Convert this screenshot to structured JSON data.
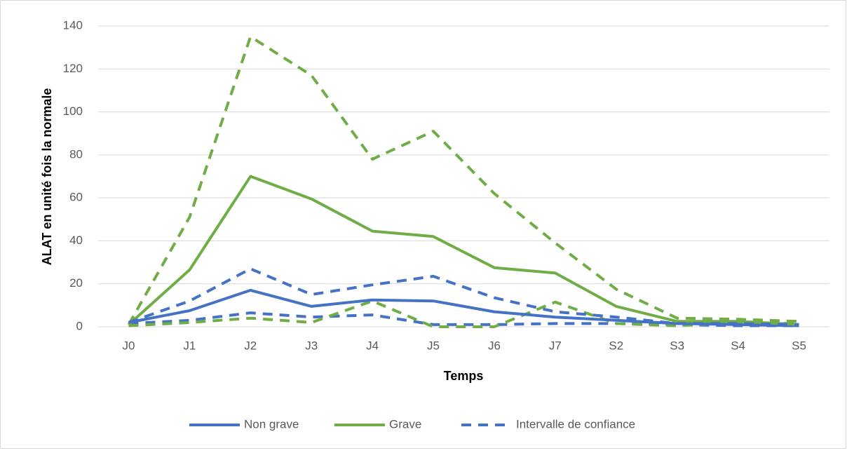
{
  "chart_data": {
    "type": "line",
    "y_label": "ALAT en unité fois la normale",
    "x_label": "Temps",
    "categories": [
      "J0",
      "J1",
      "J2",
      "J3",
      "J4",
      "J5",
      "J6",
      "J7",
      "S2",
      "S3",
      "S4",
      "S5"
    ],
    "series": [
      {
        "color": "#4472c4",
        "dash": true,
        "values": [
          1.5,
          3,
          6.5,
          4.5,
          5.5,
          1,
          1,
          1.5,
          1.5,
          1,
          0.5,
          0.5
        ]
      },
      {
        "color": "#70ad47",
        "dash": true,
        "values": [
          1,
          51,
          135,
          117,
          78,
          91,
          62,
          39,
          17.5,
          4,
          3.5,
          2.5
        ]
      },
      {
        "color": "#70ad47",
        "dash": true,
        "values": [
          0.5,
          2,
          4,
          2,
          12,
          0,
          0,
          11.5,
          1.5,
          0.5,
          2,
          1.5
        ]
      },
      {
        "name": "Non grave",
        "color": "#4472c4",
        "dash": false,
        "values": [
          2,
          7.5,
          17,
          9.5,
          12.5,
          12,
          7,
          4.5,
          3,
          1.5,
          1,
          0.5
        ]
      },
      {
        "name": "Grave",
        "color": "#70ad47",
        "dash": false,
        "values": [
          1,
          26.5,
          70,
          59.5,
          44.5,
          42,
          27.5,
          25,
          9.5,
          2.5,
          2.5,
          1
        ]
      },
      {
        "name": "Intervalle de confiance",
        "color": "#4472c4",
        "dash": true,
        "values": [
          2,
          12,
          27,
          15,
          19.5,
          23.5,
          13.5,
          7,
          4.5,
          1.5,
          1.5,
          1
        ]
      }
    ],
    "ylim": [
      0,
      140
    ],
    "yticks": [
      0,
      20,
      40,
      60,
      80,
      100,
      120,
      140
    ],
    "grid": true,
    "legend": "bottom"
  }
}
